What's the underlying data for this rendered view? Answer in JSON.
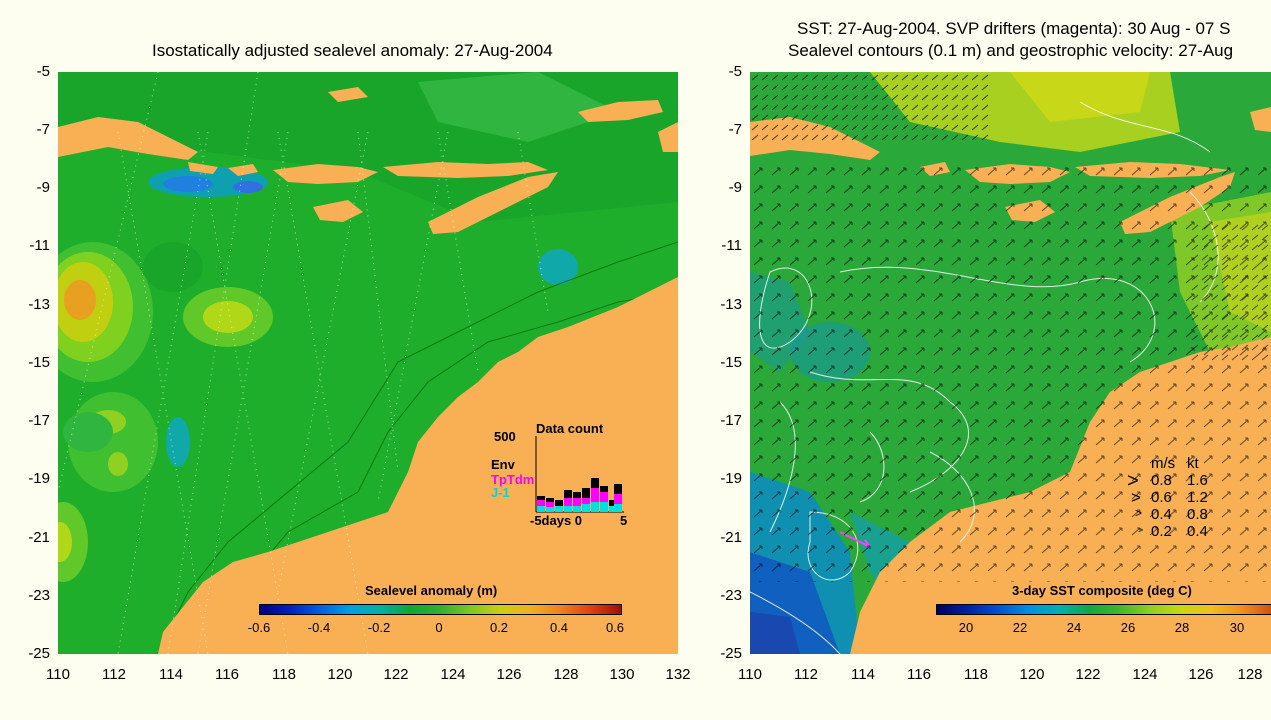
{
  "left_panel": {
    "title": "Isostatically adjusted sealevel anomaly: 27-Aug-2004",
    "y_ticks": [
      "-5",
      "-7",
      "-9",
      "-11",
      "-13",
      "-15",
      "-17",
      "-19",
      "-21",
      "-23",
      "-25"
    ],
    "x_ticks": [
      "110",
      "112",
      "114",
      "116",
      "118",
      "120",
      "122",
      "124",
      "126",
      "128",
      "130",
      "132"
    ],
    "colorbar": {
      "label": "Sealevel anomaly (m)",
      "ticks": [
        "-0.6",
        "-0.4",
        "-0.2",
        "0",
        "0.2",
        "0.4",
        "0.6"
      ]
    },
    "inset": {
      "title": "Data count",
      "y_max": "500",
      "series": [
        "Env",
        "TpTdm",
        "J-1"
      ],
      "series_colors": [
        "#000000",
        "#ff00ff",
        "#00e0e0"
      ],
      "x_label": "-5days 0",
      "x_end": "5"
    }
  },
  "right_panel": {
    "title_line1": "SST: 27-Aug-2004. SVP drifters (magenta): 30 Aug - 07 S",
    "title_line2": "Sealevel contours (0.1 m) and geostrophic velocity: 27-Aug",
    "y_ticks": [
      "-5",
      "-7",
      "-9",
      "-11",
      "-13",
      "-15",
      "-17",
      "-19",
      "-21",
      "-23",
      "-25"
    ],
    "x_ticks": [
      "110",
      "112",
      "114",
      "116",
      "118",
      "120",
      "122",
      "124",
      "126",
      "128"
    ],
    "colorbar": {
      "label": "3-day SST composite (deg C)",
      "ticks": [
        "20",
        "22",
        "24",
        "26",
        "28",
        "30"
      ]
    },
    "speed_legend": {
      "header_ms": "m/s",
      "header_kt": "kt",
      "rows": [
        {
          "ms": "0.8",
          "kt": "1.6"
        },
        {
          "ms": "0.6",
          "kt": "1.2"
        },
        {
          "ms": "0.4",
          "kt": "0.8"
        },
        {
          "ms": "0.2",
          "kt": "0.4"
        }
      ]
    }
  },
  "colors": {
    "land": "#f9b054",
    "ocean_mid": "#20b030",
    "background": "#fdfdf0"
  }
}
